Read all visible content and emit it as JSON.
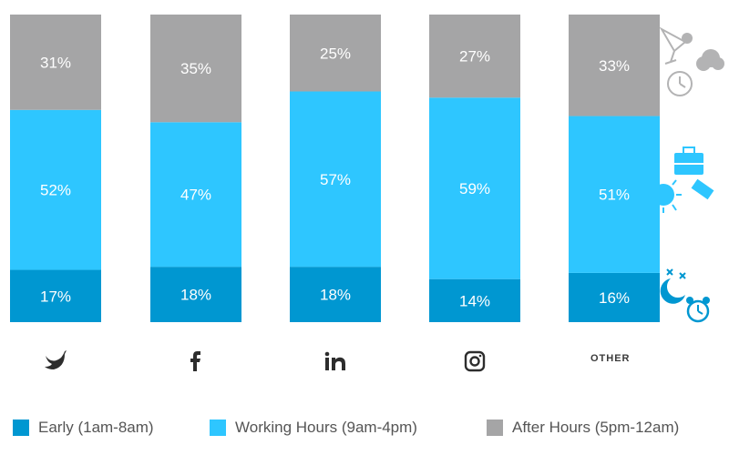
{
  "chart_data": {
    "type": "bar",
    "stacked": true,
    "orientation": "vertical",
    "normalized_percent": true,
    "categories": [
      "twitter-icon",
      "facebook-icon",
      "linkedin-icon",
      "instagram-icon",
      "OTHER"
    ],
    "category_display": {
      "twitter-icon": "icon",
      "facebook-icon": "icon",
      "linkedin-icon": "icon",
      "instagram-icon": "icon",
      "OTHER": "text"
    },
    "series": [
      {
        "name": "Early (1am-8am)",
        "values": [
          17,
          18,
          18,
          14,
          16
        ],
        "color": "#0097d1"
      },
      {
        "name": "Working Hours (9am-4pm)",
        "values": [
          52,
          47,
          57,
          59,
          51
        ],
        "color": "#2ec6ff"
      },
      {
        "name": "After Hours (5pm-12am)",
        "values": [
          31,
          35,
          25,
          27,
          33
        ],
        "color": "#a5a5a6"
      }
    ],
    "value_suffix": "%",
    "legend_position": "bottom",
    "grid": false,
    "side_icons": [
      "cocktail-clock-icon",
      "briefcase-sun-icon",
      "moon-alarm-icon"
    ]
  }
}
